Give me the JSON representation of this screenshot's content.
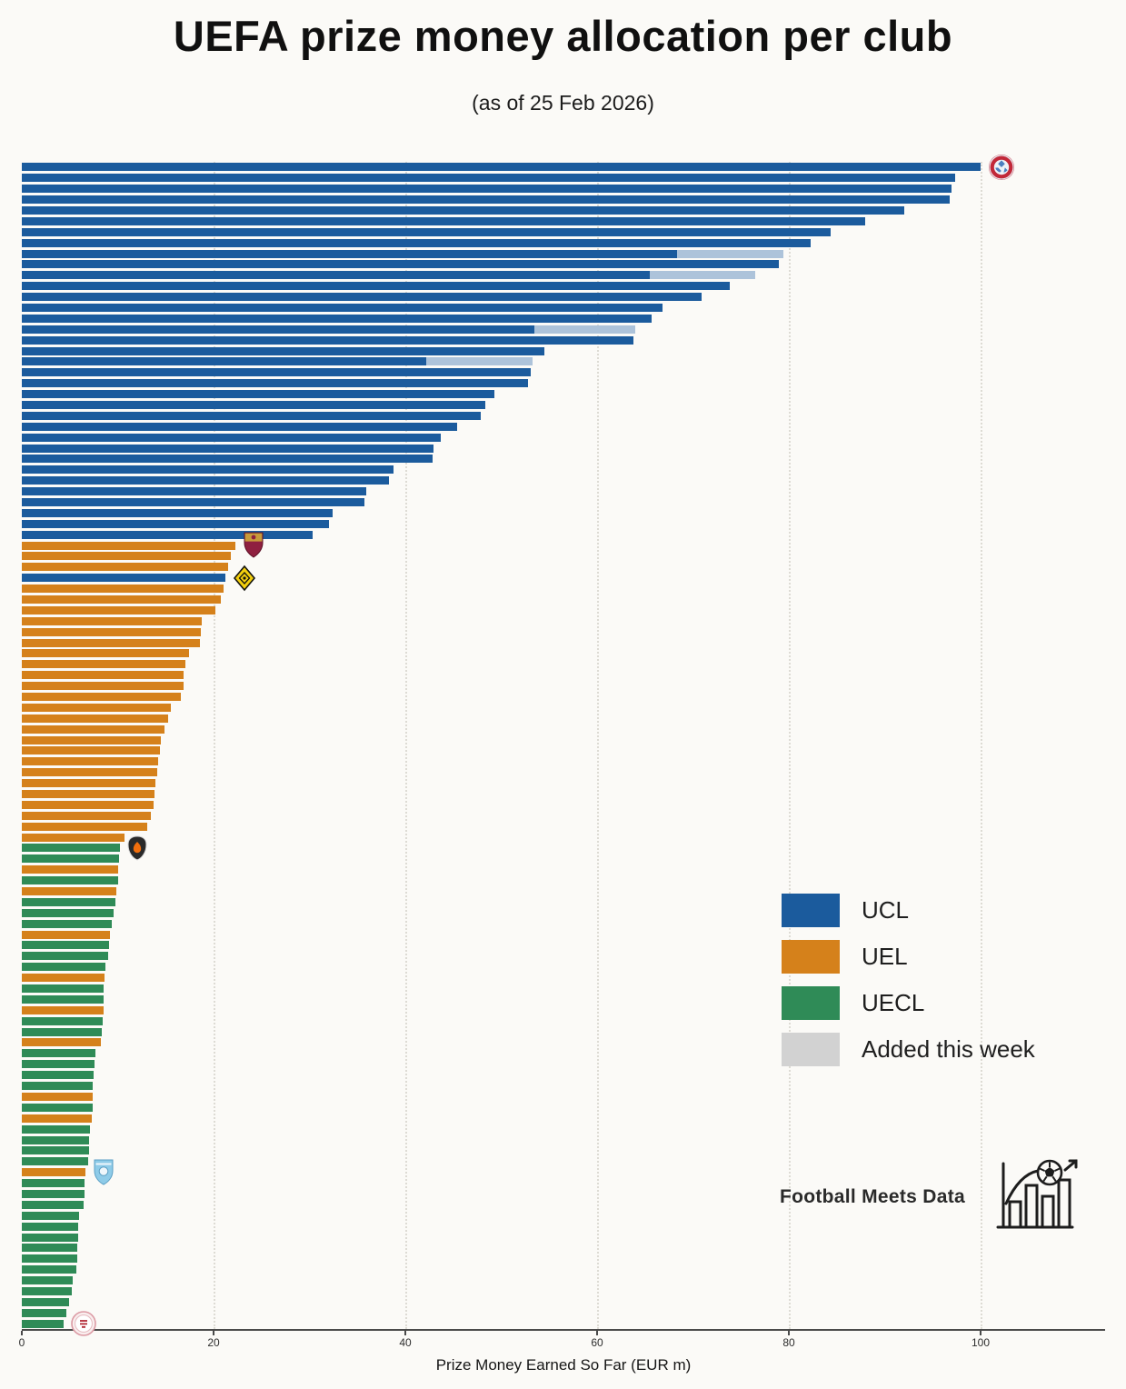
{
  "title": "UEFA prize money allocation per club",
  "subtitle": "(as of 25 Feb 2026)",
  "footer": {
    "brand": "Football Meets Data"
  },
  "chart_data": {
    "type": "bar",
    "orientation": "horizontal",
    "title": "UEFA prize money allocation per club",
    "subtitle": "(as of 25 Feb 2026)",
    "xlabel": "Prize Money Earned So Far (EUR m)",
    "x_ticks": [
      0,
      20,
      40,
      60,
      80,
      100
    ],
    "xlim": [
      0,
      113
    ],
    "grid": "vertical-dotted",
    "unit": "EUR m",
    "colors": {
      "UCL": "#1b5b9d",
      "UEL": "#d5811b",
      "UECL": "#2f8b57",
      "added_segment": "#adc3da",
      "added_legend": "#d2d2d2",
      "axis": "#4a4a4a",
      "background": "#fbfaf7"
    },
    "legend": {
      "position": "center-right",
      "entries": [
        {
          "label": "UCL",
          "color": "#1b5b9d"
        },
        {
          "label": "UEL",
          "color": "#d5811b"
        },
        {
          "label": "UECL",
          "color": "#2f8b57"
        },
        {
          "label": "Added this week",
          "color": "#d2d2d2"
        }
      ]
    },
    "bars_format": "[total_value_EURm, competition, solid_value_before_this_week(optional; remainder shown as 'Added this week')]",
    "bars": [
      [
        100.0,
        "UCL"
      ],
      [
        97.3,
        "UCL"
      ],
      [
        97.0,
        "UCL"
      ],
      [
        96.8,
        "UCL"
      ],
      [
        92.0,
        "UCL"
      ],
      [
        88.0,
        "UCL"
      ],
      [
        84.4,
        "UCL"
      ],
      [
        82.3,
        "UCL"
      ],
      [
        79.4,
        "UCL",
        68.3
      ],
      [
        79.0,
        "UCL"
      ],
      [
        76.5,
        "UCL",
        65.5
      ],
      [
        73.8,
        "UCL"
      ],
      [
        70.9,
        "UCL"
      ],
      [
        66.8,
        "UCL"
      ],
      [
        65.7,
        "UCL"
      ],
      [
        64.0,
        "UCL",
        53.5
      ],
      [
        63.8,
        "UCL"
      ],
      [
        54.5,
        "UCL"
      ],
      [
        53.3,
        "UCL",
        42.2
      ],
      [
        53.1,
        "UCL"
      ],
      [
        52.8,
        "UCL"
      ],
      [
        49.3,
        "UCL"
      ],
      [
        48.3,
        "UCL"
      ],
      [
        47.9,
        "UCL"
      ],
      [
        45.4,
        "UCL"
      ],
      [
        43.7,
        "UCL"
      ],
      [
        42.9,
        "UCL"
      ],
      [
        42.8,
        "UCL"
      ],
      [
        38.8,
        "UCL"
      ],
      [
        38.3,
        "UCL"
      ],
      [
        35.9,
        "UCL"
      ],
      [
        35.7,
        "UCL"
      ],
      [
        32.4,
        "UCL"
      ],
      [
        32.0,
        "UCL"
      ],
      [
        30.3,
        "UCL"
      ],
      [
        22.3,
        "UEL"
      ],
      [
        21.8,
        "UEL"
      ],
      [
        21.5,
        "UEL"
      ],
      [
        21.2,
        "UCL"
      ],
      [
        21.0,
        "UEL"
      ],
      [
        20.8,
        "UEL"
      ],
      [
        20.2,
        "UEL"
      ],
      [
        18.8,
        "UEL"
      ],
      [
        18.7,
        "UEL"
      ],
      [
        18.6,
        "UEL"
      ],
      [
        17.4,
        "UEL"
      ],
      [
        17.1,
        "UEL"
      ],
      [
        16.9,
        "UEL"
      ],
      [
        16.9,
        "UEL"
      ],
      [
        16.6,
        "UEL"
      ],
      [
        15.5,
        "UEL"
      ],
      [
        15.3,
        "UEL"
      ],
      [
        14.9,
        "UEL"
      ],
      [
        14.5,
        "UEL"
      ],
      [
        14.4,
        "UEL"
      ],
      [
        14.2,
        "UEL"
      ],
      [
        14.1,
        "UEL"
      ],
      [
        13.9,
        "UEL"
      ],
      [
        13.8,
        "UEL"
      ],
      [
        13.7,
        "UEL"
      ],
      [
        13.5,
        "UEL"
      ],
      [
        13.1,
        "UEL"
      ],
      [
        10.7,
        "UEL"
      ],
      [
        10.2,
        "UECL"
      ],
      [
        10.1,
        "UECL"
      ],
      [
        10.0,
        "UEL"
      ],
      [
        10.0,
        "UECL"
      ],
      [
        9.9,
        "UEL"
      ],
      [
        9.8,
        "UECL"
      ],
      [
        9.6,
        "UECL"
      ],
      [
        9.4,
        "UECL"
      ],
      [
        9.2,
        "UEL"
      ],
      [
        9.1,
        "UECL"
      ],
      [
        9.0,
        "UECL"
      ],
      [
        8.7,
        "UECL"
      ],
      [
        8.6,
        "UEL"
      ],
      [
        8.5,
        "UECL"
      ],
      [
        8.5,
        "UECL"
      ],
      [
        8.5,
        "UEL"
      ],
      [
        8.4,
        "UECL"
      ],
      [
        8.3,
        "UECL"
      ],
      [
        8.2,
        "UEL"
      ],
      [
        7.7,
        "UECL"
      ],
      [
        7.6,
        "UECL"
      ],
      [
        7.5,
        "UECL"
      ],
      [
        7.4,
        "UECL"
      ],
      [
        7.4,
        "UEL"
      ],
      [
        7.4,
        "UECL"
      ],
      [
        7.3,
        "UEL"
      ],
      [
        7.1,
        "UECL"
      ],
      [
        7.0,
        "UECL"
      ],
      [
        7.0,
        "UECL"
      ],
      [
        6.9,
        "UECL"
      ],
      [
        6.6,
        "UEL"
      ],
      [
        6.5,
        "UECL"
      ],
      [
        6.5,
        "UECL"
      ],
      [
        6.4,
        "UECL"
      ],
      [
        6.0,
        "UECL"
      ],
      [
        5.9,
        "UECL"
      ],
      [
        5.9,
        "UECL"
      ],
      [
        5.8,
        "UECL"
      ],
      [
        5.8,
        "UECL"
      ],
      [
        5.7,
        "UECL"
      ],
      [
        5.3,
        "UECL"
      ],
      [
        5.2,
        "UECL"
      ],
      [
        4.9,
        "UECL"
      ],
      [
        4.6,
        "UECL"
      ],
      [
        4.4,
        "UECL"
      ]
    ],
    "logos": [
      {
        "name": "bayern-munich-crest",
        "bar_index": 0
      },
      {
        "name": "as-roma-crest",
        "bar_index": 35
      },
      {
        "name": "bodo-glimt-crest",
        "bar_index": 38
      },
      {
        "name": "shakhtar-donetsk-crest",
        "bar_index": 63
      },
      {
        "name": "malmo-ff-crest",
        "bar_index": 93
      },
      {
        "name": "club-crest",
        "bar_index": 107
      }
    ]
  }
}
